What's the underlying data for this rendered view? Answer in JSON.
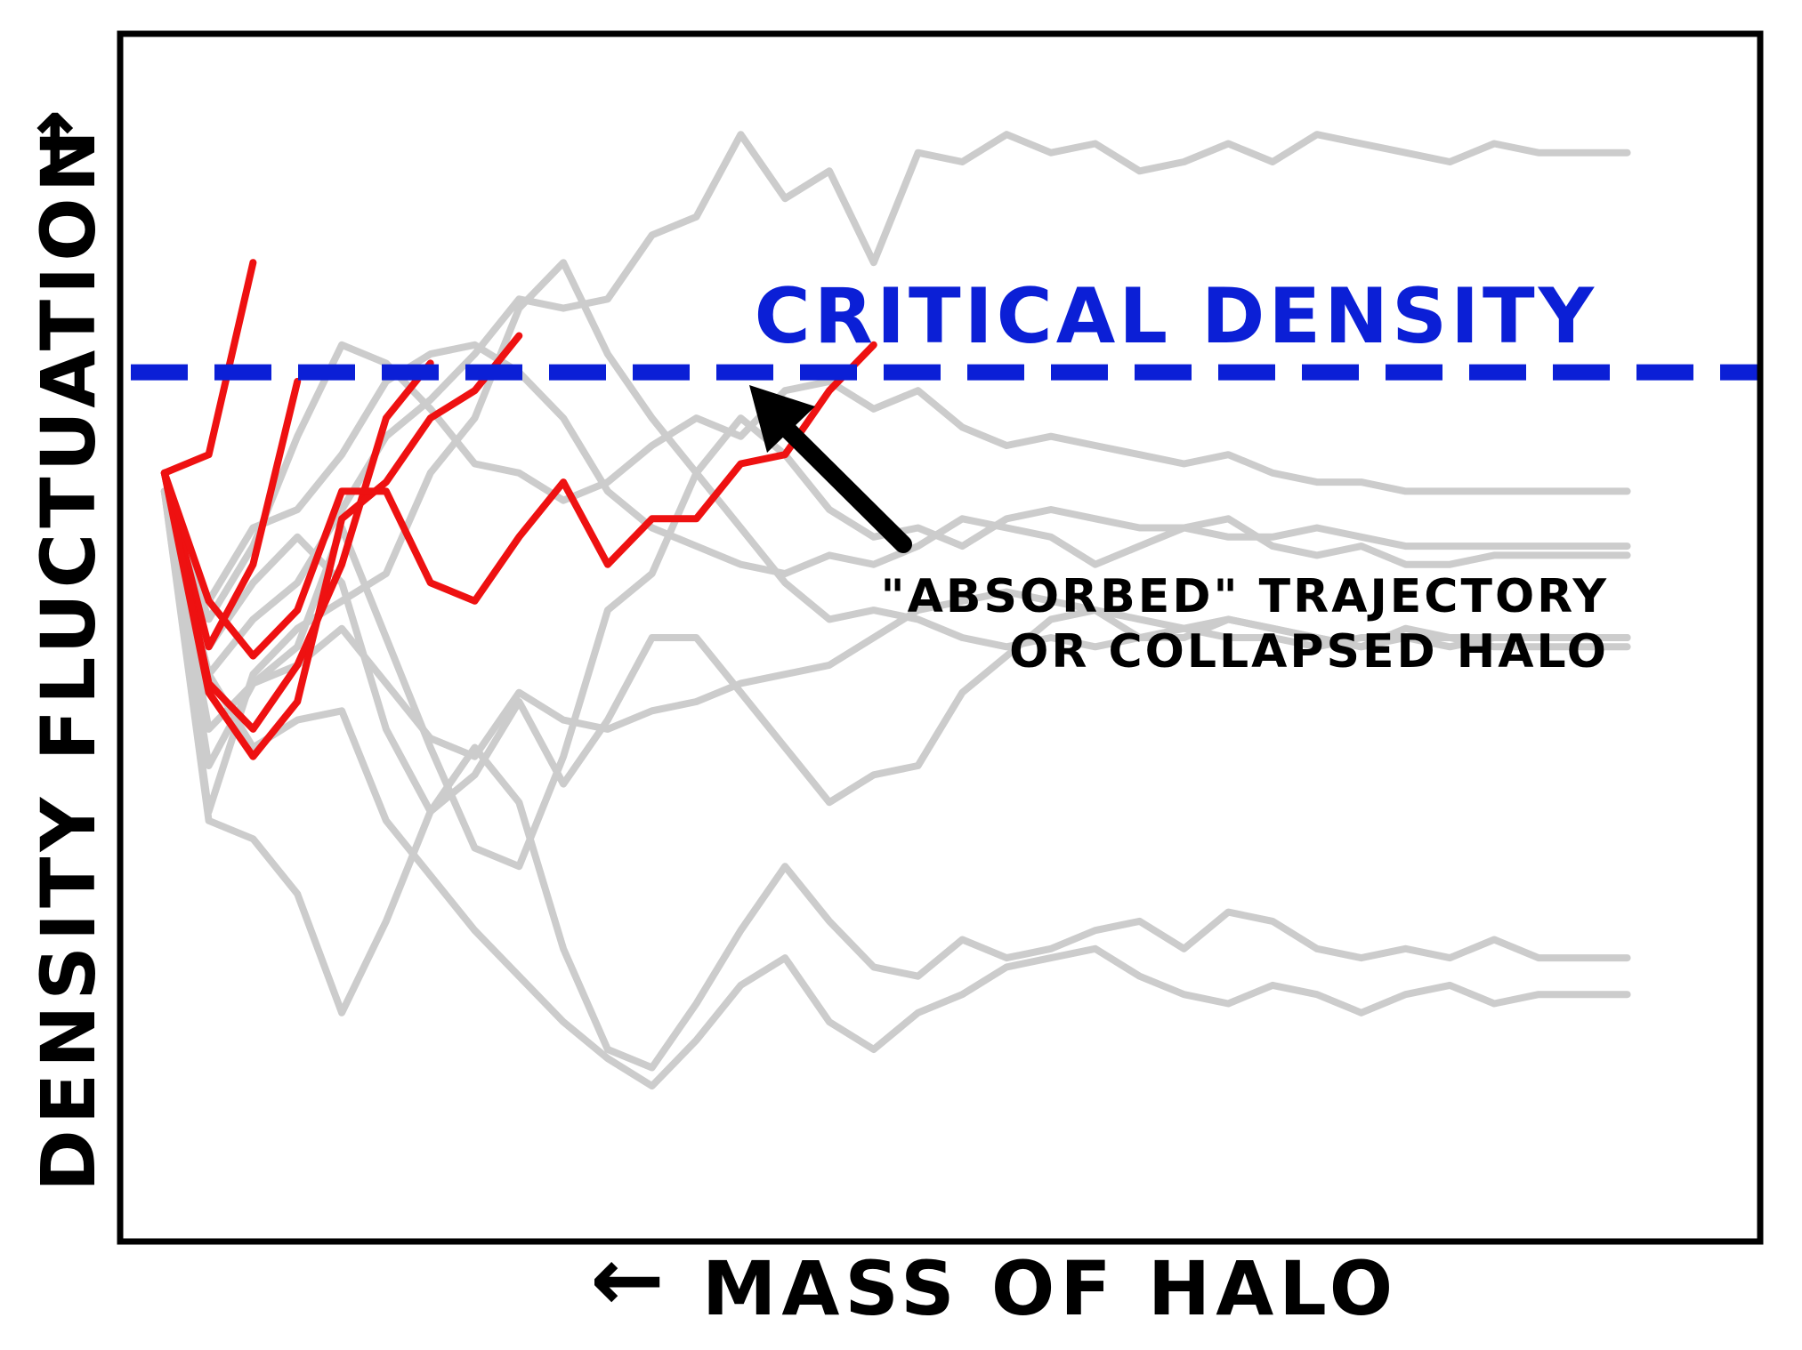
{
  "chart_data": {
    "type": "line",
    "style": "xkcd hand-drawn",
    "xlabel": "MASS OF HALO",
    "ylabel": "DENSITY FLUCTUATION",
    "xlabel_arrow": "←",
    "ylabel_arrow": "→",
    "xlim": [
      -1,
      36
    ],
    "ylim": [
      -3.6,
      3.0
    ],
    "ticks": "none",
    "critical_density": {
      "value": 1.15,
      "label": "CRITICAL DENSITY",
      "color": "#0b1fd6",
      "style": "dashed"
    },
    "annotation": {
      "lines": [
        "\"ABSORBED\" TRAJECTORY",
        "OR COLLAPSED HALO"
      ],
      "points_to": {
        "x": 13.5,
        "y": 1.05
      }
    },
    "colors": {
      "absorbed": "#ee1111",
      "free": "#cccccc",
      "frame": "#000000",
      "arrow": "#000000"
    },
    "series": [
      {
        "name": "free-1",
        "status": "free",
        "x": [
          0,
          1,
          2,
          3,
          4,
          5,
          6,
          7,
          8,
          9,
          10,
          11,
          12,
          13,
          14,
          15,
          16,
          17,
          18,
          19,
          20,
          21,
          22,
          23,
          24,
          25,
          26,
          27,
          28,
          29,
          30,
          31,
          32,
          33
        ],
        "values": [
          0.5,
          -0.5,
          -0.2,
          0.0,
          0.4,
          0.8,
          1.0,
          1.25,
          1.55,
          1.5,
          1.55,
          1.9,
          2.0,
          2.45,
          2.1,
          2.25,
          1.75,
          2.35,
          2.3,
          2.45,
          2.35,
          2.4,
          2.25,
          2.3,
          2.4,
          2.3,
          2.45,
          2.4,
          2.35,
          2.3,
          2.4,
          2.35,
          2.35,
          2.35
        ]
      },
      {
        "name": "free-2",
        "status": "free",
        "x": [
          0,
          1,
          2,
          3,
          4,
          5,
          6,
          7,
          8,
          9,
          10,
          11,
          12,
          13,
          14,
          15,
          16,
          17,
          18,
          19,
          20,
          21,
          22,
          23,
          24,
          25,
          26,
          27,
          28,
          29,
          30,
          31,
          32,
          33
        ],
        "values": [
          0.5,
          -0.1,
          0.3,
          0.4,
          0.7,
          1.1,
          1.25,
          1.3,
          1.15,
          0.9,
          0.5,
          0.3,
          0.2,
          0.1,
          0.05,
          0.15,
          0.1,
          0.2,
          0.35,
          0.3,
          0.25,
          0.1,
          0.2,
          0.3,
          0.35,
          0.2,
          0.15,
          0.2,
          0.1,
          0.1,
          0.15,
          0.15,
          0.15,
          0.15
        ]
      },
      {
        "name": "free-3",
        "status": "free",
        "x": [
          0,
          1,
          2,
          3,
          4,
          5,
          6,
          7,
          8,
          9,
          10,
          11,
          12,
          13,
          14,
          15,
          16,
          17,
          18,
          19,
          20,
          21,
          22,
          23,
          24,
          25,
          26,
          27,
          28,
          29,
          30,
          31,
          32,
          33
        ],
        "values": [
          0.5,
          -1.3,
          -1.4,
          -1.7,
          -2.35,
          -1.85,
          -1.25,
          -0.9,
          -1.2,
          -2.0,
          -2.55,
          -2.65,
          -2.3,
          -1.9,
          -1.55,
          -1.85,
          -2.1,
          -2.15,
          -1.95,
          -2.05,
          -2.0,
          -1.9,
          -1.85,
          -2.0,
          -1.8,
          -1.85,
          -2.0,
          -2.05,
          -2.0,
          -2.05,
          -1.95,
          -2.05,
          -2.05,
          -2.05
        ]
      },
      {
        "name": "free-4",
        "status": "free",
        "x": [
          0,
          1,
          2,
          3,
          4,
          5,
          6,
          7,
          8,
          9,
          10,
          11,
          12,
          13,
          14,
          15,
          16,
          17,
          18,
          19,
          20,
          21,
          22,
          23,
          24,
          25,
          26,
          27,
          28,
          29,
          30,
          31,
          32,
          33
        ],
        "values": [
          0.5,
          -0.5,
          -0.9,
          -0.75,
          -0.7,
          -1.3,
          -1.6,
          -1.9,
          -2.15,
          -2.4,
          -2.6,
          -2.75,
          -2.5,
          -2.2,
          -2.05,
          -2.4,
          -2.55,
          -2.35,
          -2.25,
          -2.1,
          -2.05,
          -2.0,
          -2.15,
          -2.25,
          -2.3,
          -2.2,
          -2.25,
          -2.35,
          -2.25,
          -2.2,
          -2.3,
          -2.25,
          -2.25,
          -2.25
        ]
      },
      {
        "name": "free-5",
        "status": "free",
        "x": [
          0,
          1,
          2,
          3,
          4,
          5,
          6,
          7,
          8,
          9,
          10,
          11,
          12,
          13,
          14,
          15,
          16,
          17,
          18,
          19,
          20,
          21,
          22,
          23,
          24,
          25,
          26,
          27,
          28,
          29,
          30,
          31,
          32,
          33
        ],
        "values": [
          0.5,
          -1.25,
          -0.5,
          -0.25,
          -0.1,
          0.05,
          0.6,
          0.9,
          1.5,
          1.75,
          1.25,
          0.9,
          0.6,
          0.3,
          0.0,
          -0.2,
          -0.15,
          -0.2,
          -0.3,
          -0.35,
          -0.3,
          -0.35,
          -0.3,
          -0.25,
          -0.3,
          -0.3,
          -0.35,
          -0.3,
          -0.3,
          -0.35,
          -0.3,
          -0.3,
          -0.3,
          -0.3
        ]
      },
      {
        "name": "free-6",
        "status": "free",
        "x": [
          0,
          1,
          2,
          3,
          4,
          5,
          6,
          7,
          8,
          9,
          10,
          11,
          12,
          13,
          14,
          15,
          16,
          17,
          18,
          19,
          20,
          21,
          22,
          23,
          24,
          25,
          26,
          27,
          28,
          29,
          30,
          31,
          32,
          33
        ],
        "values": [
          0.5,
          -0.35,
          0.0,
          0.25,
          0.0,
          -0.8,
          -1.25,
          -1.05,
          -0.65,
          -1.1,
          -0.75,
          -0.3,
          -0.3,
          -0.6,
          -0.9,
          -1.2,
          -1.05,
          -1.0,
          -0.6,
          -0.4,
          -0.2,
          -0.15,
          -0.3,
          -0.3,
          -0.2,
          -0.25,
          -0.3,
          -0.35,
          -0.25,
          -0.3,
          -0.3,
          -0.3,
          -0.3,
          -0.3
        ]
      },
      {
        "name": "free-7",
        "status": "free",
        "x": [
          0,
          1,
          2,
          3,
          4,
          5,
          6,
          7,
          8,
          9,
          10,
          11,
          12,
          13,
          14,
          15,
          16,
          17,
          18,
          19,
          20,
          21,
          22,
          23,
          24,
          25,
          26,
          27,
          28,
          29,
          30,
          31,
          32,
          33
        ],
        "values": [
          0.5,
          -0.2,
          0.2,
          0.8,
          1.3,
          1.2,
          0.95,
          0.65,
          0.6,
          0.45,
          0.55,
          0.75,
          0.9,
          0.8,
          1.05,
          1.1,
          0.95,
          1.05,
          0.85,
          0.75,
          0.8,
          0.75,
          0.7,
          0.65,
          0.7,
          0.6,
          0.55,
          0.55,
          0.5,
          0.5,
          0.5,
          0.5,
          0.5,
          0.5
        ]
      },
      {
        "name": "free-8",
        "status": "free",
        "x": [
          0,
          1,
          2,
          3,
          4,
          5,
          6,
          7,
          8,
          9,
          10,
          11,
          12,
          13,
          14,
          15,
          16,
          17,
          18,
          19,
          20,
          21,
          22,
          23,
          24,
          25,
          26,
          27,
          28,
          29,
          30,
          31,
          32,
          33
        ],
        "values": [
          0.5,
          -1.0,
          -0.55,
          -0.35,
          0.3,
          -0.3,
          -0.9,
          -1.45,
          -1.55,
          -0.95,
          -0.15,
          0.05,
          0.6,
          0.9,
          0.7,
          0.4,
          0.25,
          0.3,
          0.2,
          0.35,
          0.4,
          0.35,
          0.3,
          0.3,
          0.25,
          0.25,
          0.3,
          0.25,
          0.2,
          0.2,
          0.2,
          0.2,
          0.2,
          0.2
        ]
      },
      {
        "name": "free-9",
        "status": "free",
        "x": [
          0,
          1,
          2,
          3,
          4,
          5,
          6,
          7,
          8,
          9,
          10,
          11,
          12,
          13,
          14,
          15,
          16,
          17,
          18,
          19,
          20,
          21,
          22,
          23,
          24,
          25,
          26,
          27,
          28,
          29,
          30,
          31,
          32,
          33
        ],
        "values": [
          0.5,
          -0.8,
          -0.55,
          -0.45,
          -0.25,
          -0.55,
          -0.85,
          -0.95,
          -0.6,
          -0.75,
          -0.8,
          -0.7,
          -0.65,
          -0.55,
          -0.5,
          -0.45,
          -0.3,
          -0.15,
          -0.1,
          -0.05,
          -0.1,
          -0.15,
          -0.2,
          -0.25,
          -0.2,
          -0.25,
          -0.3,
          -0.35,
          -0.3,
          -0.3,
          -0.35,
          -0.35,
          -0.35,
          -0.35
        ]
      },
      {
        "name": "absorbed-1",
        "status": "absorbed",
        "x": [
          0,
          1,
          2
        ],
        "values": [
          0.6,
          0.7,
          1.75
        ]
      },
      {
        "name": "absorbed-2",
        "status": "absorbed",
        "x": [
          0,
          1,
          2,
          3
        ],
        "values": [
          0.6,
          -0.35,
          0.1,
          1.1
        ]
      },
      {
        "name": "absorbed-3",
        "status": "absorbed",
        "x": [
          0,
          1,
          2,
          3,
          4,
          5,
          6
        ],
        "values": [
          0.6,
          -0.55,
          -0.8,
          -0.45,
          0.1,
          0.9,
          1.2
        ]
      },
      {
        "name": "absorbed-4",
        "status": "absorbed",
        "x": [
          0,
          1,
          2,
          3,
          4,
          5,
          6,
          7,
          8
        ],
        "values": [
          0.6,
          -0.6,
          -0.95,
          -0.65,
          0.35,
          0.55,
          0.9,
          1.05,
          1.35
        ]
      },
      {
        "name": "absorbed-5",
        "status": "absorbed",
        "x": [
          0,
          1,
          2,
          3,
          4,
          5,
          6,
          7,
          8,
          9,
          10,
          11,
          12,
          13,
          14,
          15,
          16
        ],
        "values": [
          0.6,
          -0.1,
          -0.4,
          -0.15,
          0.5,
          0.5,
          0.0,
          -0.1,
          0.25,
          0.55,
          0.1,
          0.35,
          0.35,
          0.65,
          0.7,
          1.05,
          1.3
        ]
      }
    ]
  }
}
